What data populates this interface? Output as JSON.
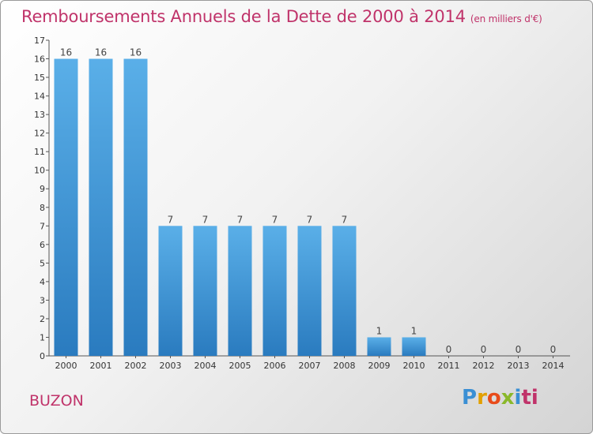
{
  "title": "Remboursements Annuels de la Dette de 2000 à 2014",
  "subtitle": "(en milliers d'€)",
  "commune": "BUZON",
  "logo": [
    "P",
    "r",
    "o",
    "x",
    "i",
    "ti"
  ],
  "colors": {
    "bar_top": "#5aafe8",
    "bar_bottom": "#2a7bbf",
    "accent": "#c0336a"
  },
  "chart_data": {
    "type": "bar",
    "title": "Remboursements Annuels de la Dette de 2000 à 2014",
    "xlabel": "",
    "ylabel": "",
    "ylim": [
      0,
      17
    ],
    "yticks": [
      0,
      1,
      2,
      3,
      4,
      5,
      6,
      7,
      8,
      9,
      10,
      11,
      12,
      13,
      14,
      15,
      16,
      17
    ],
    "grid": false,
    "categories": [
      "2000",
      "2001",
      "2002",
      "2003",
      "2004",
      "2005",
      "2006",
      "2007",
      "2008",
      "2009",
      "2010",
      "2011",
      "2012",
      "2013",
      "2014"
    ],
    "values": [
      16,
      16,
      16,
      7,
      7,
      7,
      7,
      7,
      7,
      1,
      1,
      0,
      0,
      0,
      0
    ]
  }
}
